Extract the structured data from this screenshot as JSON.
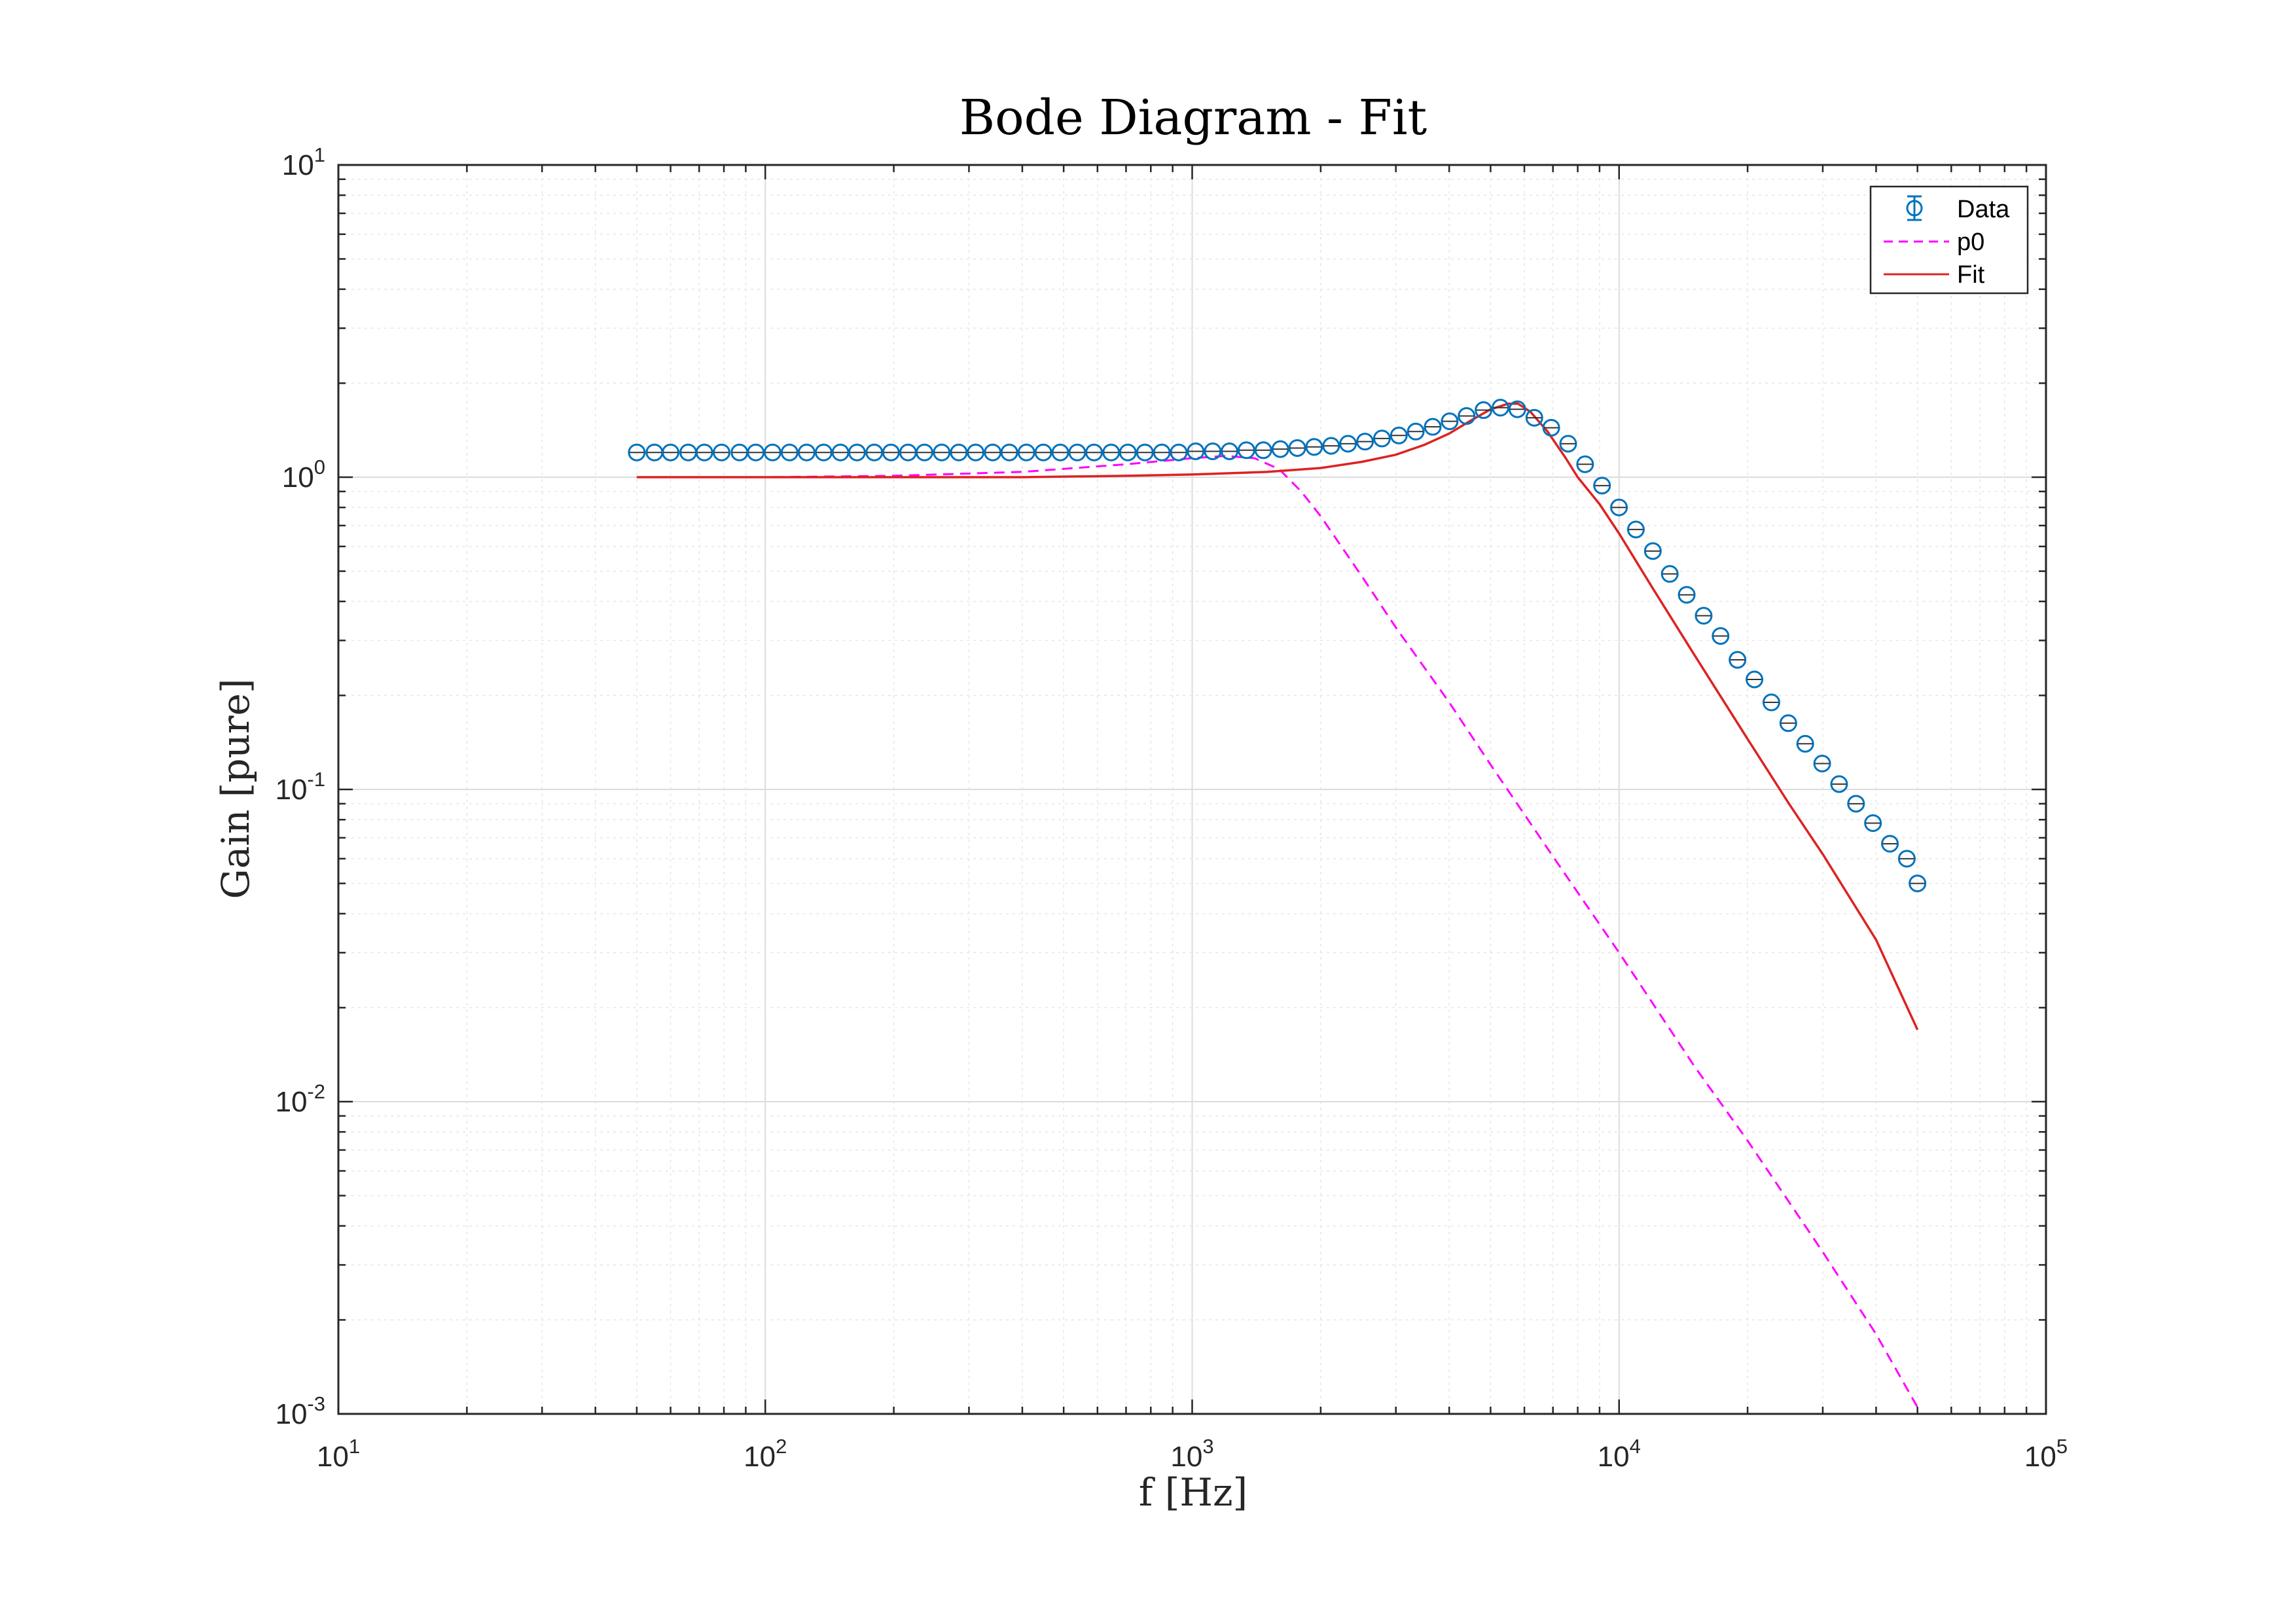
{
  "chart_data": {
    "type": "line",
    "title": "Bode Diagram - Fit",
    "xlabel": "f [Hz]",
    "ylabel": "Gain [pure]",
    "xscale": "log",
    "yscale": "log",
    "xlim": [
      10,
      100000
    ],
    "ylim": [
      0.001,
      10
    ],
    "grid": "on (major and minor)",
    "legend_position": "top-right",
    "x_ticks": [
      {
        "base": "10",
        "exp": "1"
      },
      {
        "base": "10",
        "exp": "2"
      },
      {
        "base": "10",
        "exp": "3"
      },
      {
        "base": "10",
        "exp": "4"
      },
      {
        "base": "10",
        "exp": "5"
      }
    ],
    "y_ticks": [
      {
        "base": "10",
        "exp": "1"
      },
      {
        "base": "10",
        "exp": "0"
      },
      {
        "base": "10",
        "exp": "-1"
      },
      {
        "base": "10",
        "exp": "-2"
      },
      {
        "base": "10",
        "exp": "-3"
      }
    ],
    "series": [
      {
        "name": "Data",
        "style": "circle markers with error bars",
        "color": "#0072BD",
        "x": [
          50,
          55,
          60,
          66,
          72,
          79,
          87,
          95,
          104,
          114,
          125,
          137,
          150,
          164,
          180,
          197,
          216,
          236,
          259,
          284,
          311,
          341,
          373,
          409,
          448,
          491,
          538,
          589,
          646,
          707,
          775,
          849,
          930,
          1019,
          1117,
          1223,
          1340,
          1468,
          1609,
          1763,
          1931,
          2116,
          2318,
          2540,
          2783,
          3049,
          3340,
          3660,
          4010,
          4393,
          4813,
          5274,
          5778,
          6331,
          6936,
          7599,
          8326,
          9122,
          9995,
          10950,
          11998,
          13145,
          14402,
          15780,
          17288,
          18942,
          20753,
          22738,
          24912,
          27295,
          29905,
          32765,
          35899,
          39332,
          43094,
          47215,
          50000
        ],
        "y": [
          1.2,
          1.2,
          1.2,
          1.2,
          1.2,
          1.2,
          1.2,
          1.2,
          1.2,
          1.2,
          1.2,
          1.2,
          1.2,
          1.2,
          1.2,
          1.2,
          1.2,
          1.2,
          1.2,
          1.2,
          1.2,
          1.2,
          1.2,
          1.2,
          1.2,
          1.2,
          1.2,
          1.2,
          1.2,
          1.2,
          1.2,
          1.2,
          1.2,
          1.21,
          1.21,
          1.21,
          1.22,
          1.22,
          1.23,
          1.24,
          1.25,
          1.26,
          1.28,
          1.3,
          1.33,
          1.36,
          1.4,
          1.45,
          1.51,
          1.57,
          1.64,
          1.67,
          1.65,
          1.55,
          1.44,
          1.28,
          1.1,
          0.94,
          0.8,
          0.68,
          0.58,
          0.49,
          0.42,
          0.36,
          0.31,
          0.26,
          0.225,
          0.19,
          0.163,
          0.14,
          0.121,
          0.104,
          0.09,
          0.078,
          0.067,
          0.06,
          0.05
        ]
      },
      {
        "name": "p0",
        "style": "dashed",
        "color": "#FF00FF",
        "x": [
          50,
          100,
          200,
          400,
          700,
          1000,
          1200,
          1400,
          1600,
          1800,
          2000,
          2500,
          3000,
          4000,
          5000,
          7000,
          10000,
          15000,
          20000,
          30000,
          40000,
          50000
        ],
        "y": [
          1.0,
          1.0,
          1.01,
          1.04,
          1.1,
          1.15,
          1.17,
          1.15,
          1.06,
          0.9,
          0.75,
          0.48,
          0.33,
          0.19,
          0.12,
          0.061,
          0.03,
          0.013,
          0.0075,
          0.0033,
          0.0018,
          0.00105
        ]
      },
      {
        "name": "Fit",
        "style": "solid",
        "color": "#DD2222",
        "x": [
          50,
          100,
          200,
          400,
          700,
          1000,
          1500,
          2000,
          2500,
          3000,
          3500,
          4000,
          4500,
          5000,
          5500,
          5800,
          6200,
          6800,
          7500,
          8000,
          9000,
          10000,
          12000,
          15000,
          20000,
          25000,
          30000,
          40000,
          50000
        ],
        "y": [
          1.0,
          1.0,
          1.0,
          1.0,
          1.01,
          1.02,
          1.04,
          1.07,
          1.12,
          1.18,
          1.27,
          1.38,
          1.52,
          1.65,
          1.72,
          1.72,
          1.62,
          1.4,
          1.15,
          1.0,
          0.82,
          0.66,
          0.44,
          0.27,
          0.145,
          0.09,
          0.062,
          0.033,
          0.017
        ]
      }
    ]
  }
}
